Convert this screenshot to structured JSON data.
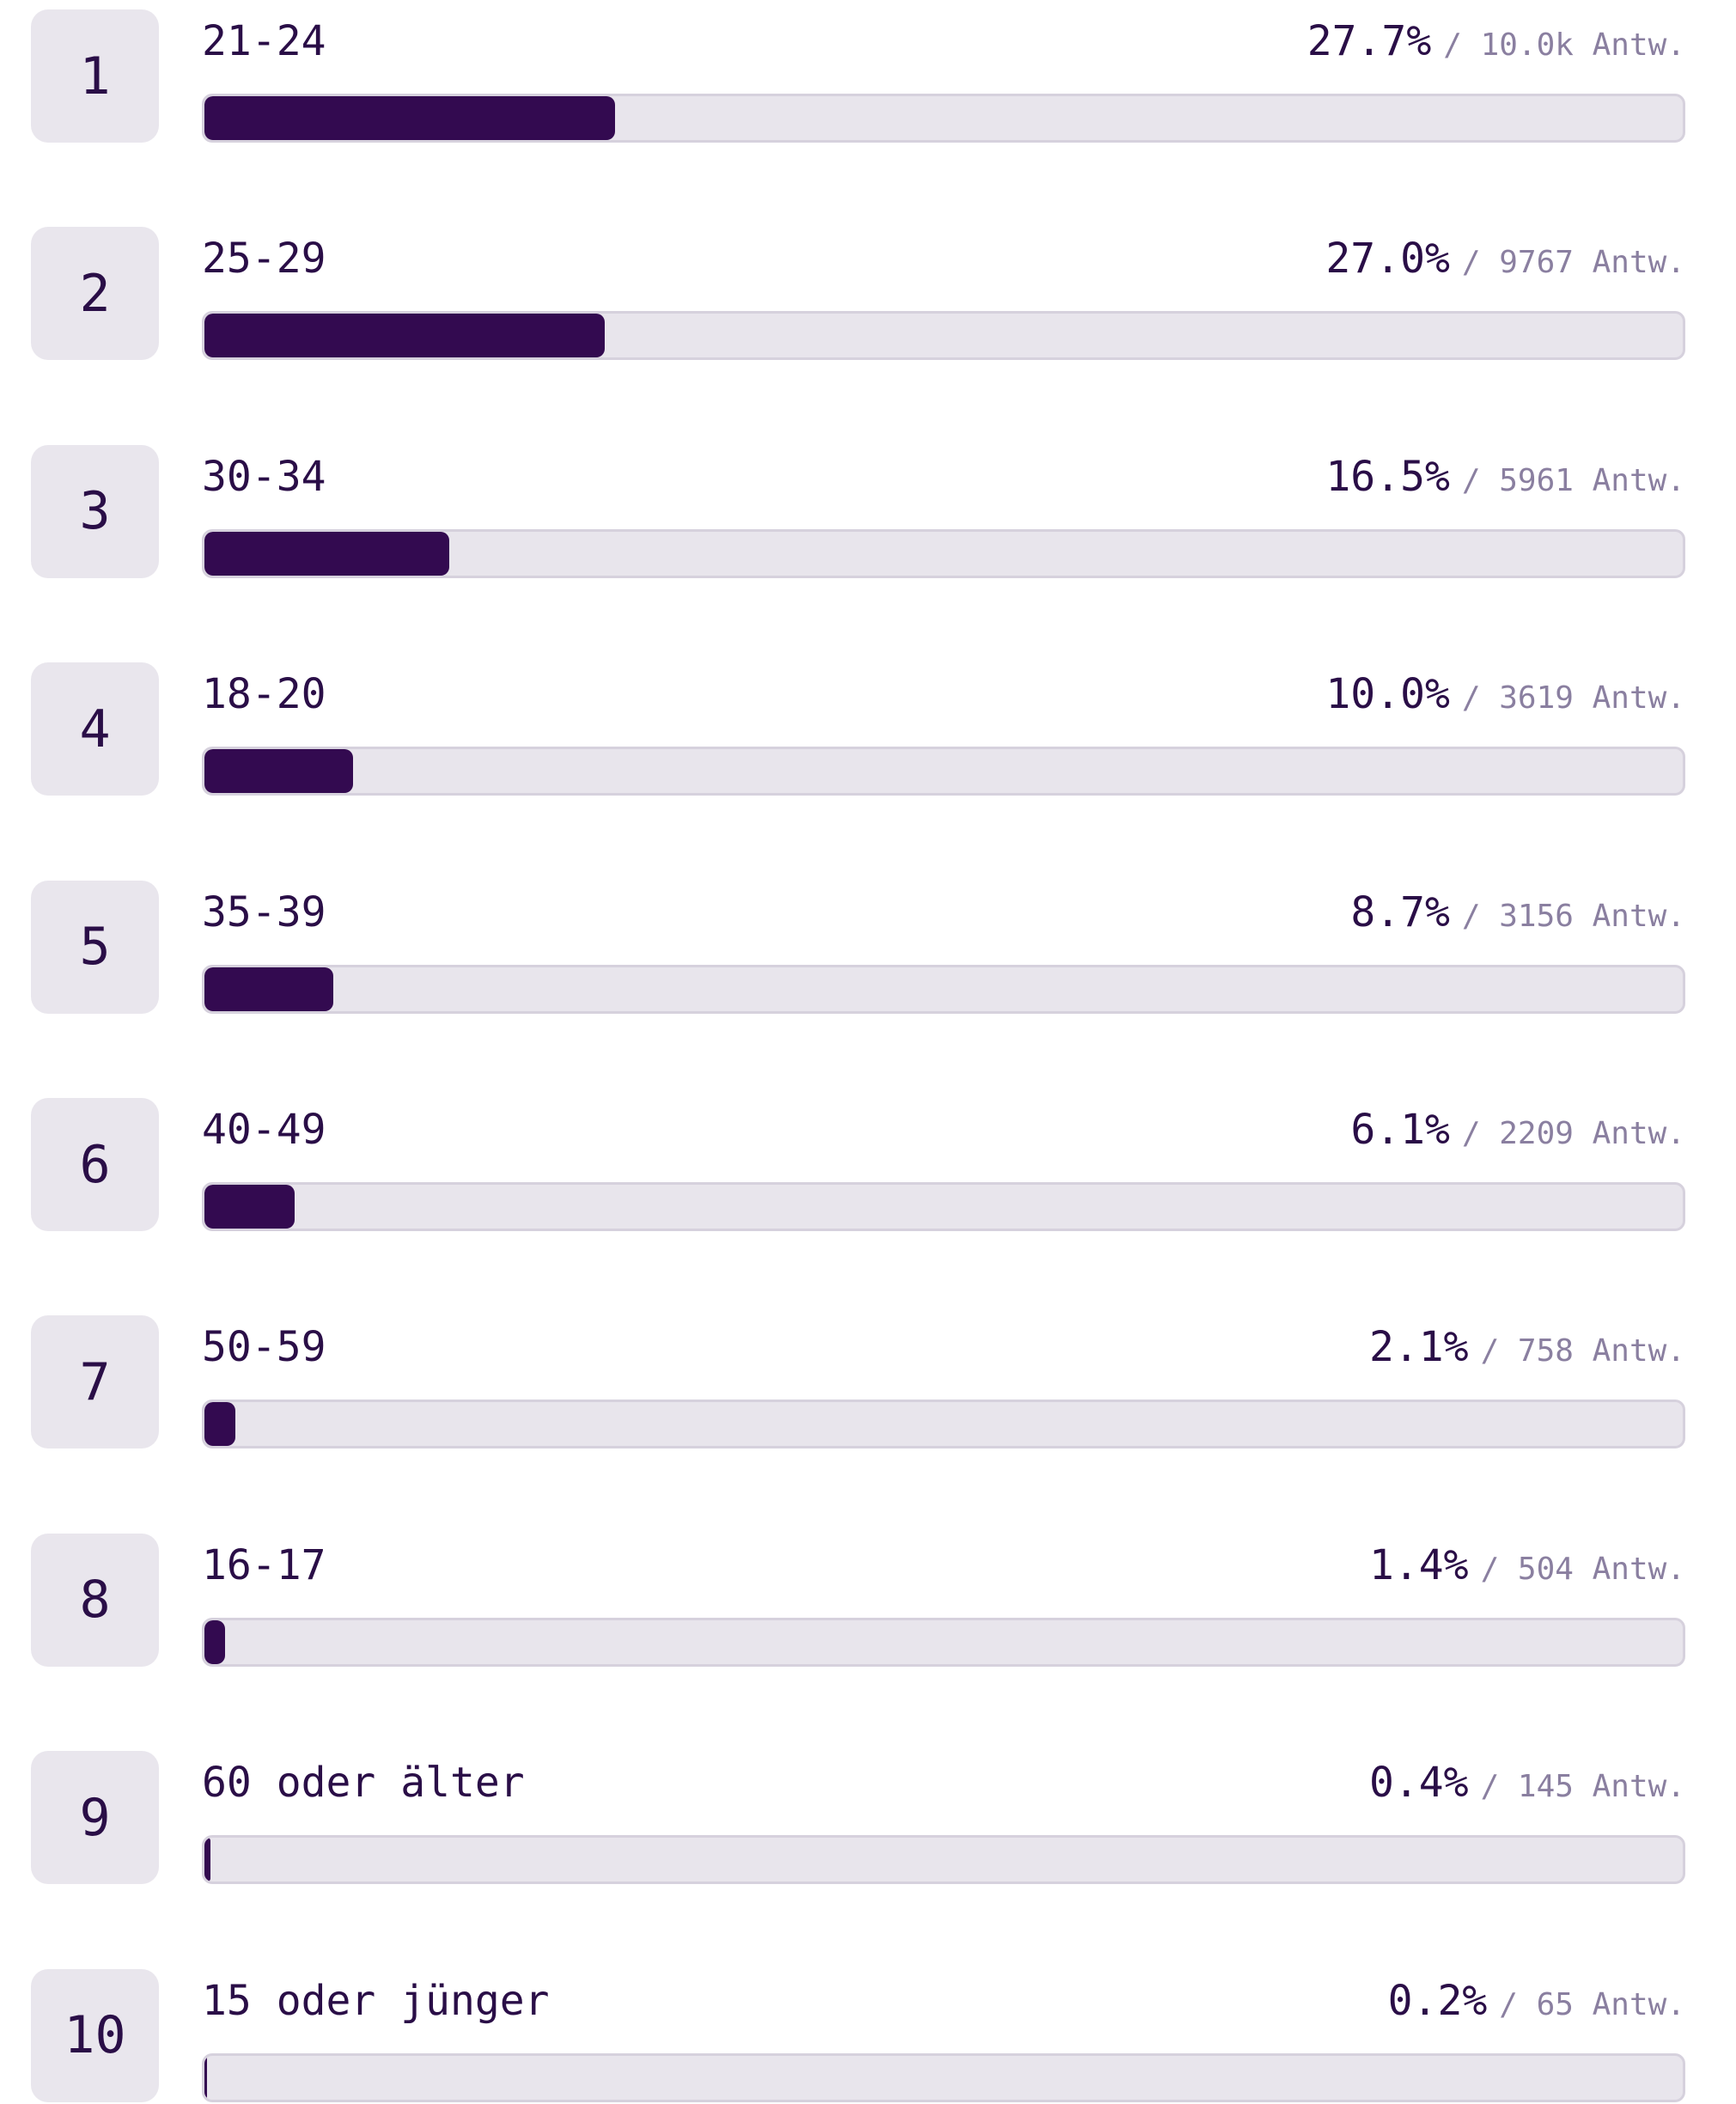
{
  "chart_data": {
    "type": "bar",
    "orientation": "horizontal",
    "color": "#330a50",
    "track_color": "#e8e5ec",
    "xlim": [
      0,
      100
    ],
    "ranks": [
      1,
      2,
      3,
      4,
      5,
      6,
      7,
      8,
      9,
      10
    ],
    "categories": [
      "21-24",
      "25-29",
      "30-34",
      "18-20",
      "35-39",
      "40-49",
      "50-59",
      "16-17",
      "60 oder älter",
      "15 oder jünger"
    ],
    "values": [
      27.7,
      27.0,
      16.5,
      10.0,
      8.7,
      6.1,
      2.1,
      1.4,
      0.4,
      0.2
    ],
    "value_labels": [
      "27.7%",
      "27.0%",
      "16.5%",
      "10.0%",
      "8.7%",
      "6.1%",
      "2.1%",
      "1.4%",
      "0.4%",
      "0.2%"
    ],
    "response_labels": [
      "/ 10.0k Antw.",
      "/ 9767 Antw.",
      "/ 5961 Antw.",
      "/ 3619 Antw.",
      "/ 3156 Antw.",
      "/ 2209 Antw.",
      "/ 758 Antw.",
      "/ 504 Antw.",
      "/ 145 Antw.",
      "/ 65 Antw."
    ]
  }
}
